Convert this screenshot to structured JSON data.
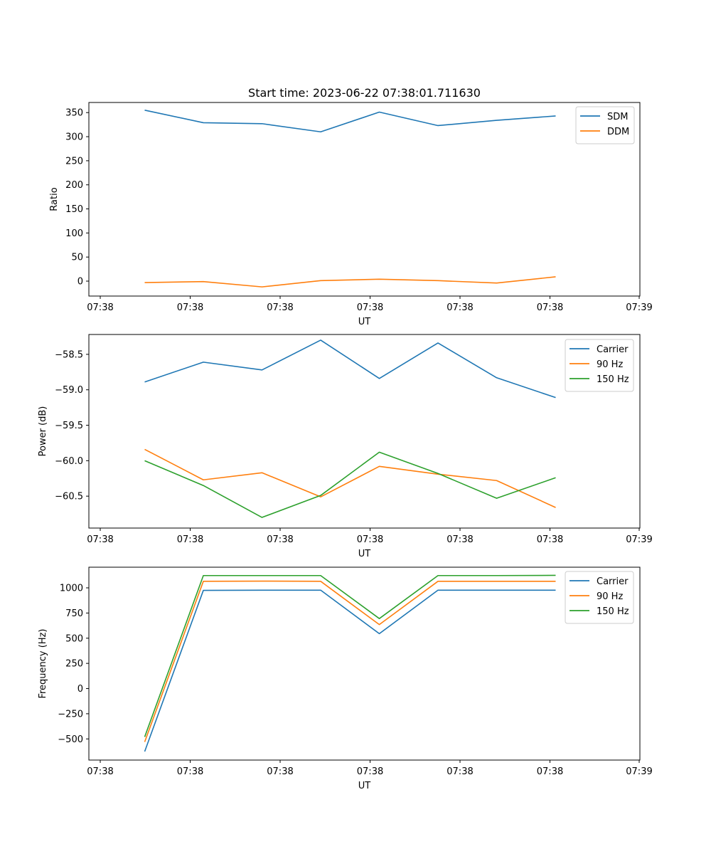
{
  "figure": {
    "title": "Start time: 2023-06-22 07:38:01.711630"
  },
  "chart_data": [
    {
      "type": "line",
      "title": "Start time: 2023-06-22 07:38:01.711630",
      "xlabel": "UT",
      "ylabel": "Ratio",
      "x_tick_labels": [
        "07:38",
        "07:38",
        "07:38",
        "07:38",
        "07:38",
        "07:38",
        "07:38"
      ],
      "x_last_tick_label": "07:39",
      "y_ticks": [
        0,
        50,
        100,
        150,
        200,
        250,
        300,
        350
      ],
      "y_tick_labels": [
        "0",
        "50",
        "100",
        "150",
        "200",
        "250",
        "300",
        "350"
      ],
      "ylim": [
        -31,
        371
      ],
      "grid": false,
      "legend": "top-right",
      "series": [
        {
          "name": "SDM",
          "color": "#1f77b4",
          "values": [
            355,
            329,
            327,
            310,
            351,
            323,
            334,
            343
          ]
        },
        {
          "name": "DDM",
          "color": "#ff7f0e",
          "values": [
            -3,
            -1,
            -12,
            1,
            4,
            1,
            -4,
            9
          ]
        }
      ]
    },
    {
      "type": "line",
      "xlabel": "UT",
      "ylabel": "Power (dB)",
      "x_tick_labels": [
        "07:38",
        "07:38",
        "07:38",
        "07:38",
        "07:38",
        "07:38",
        "07:38"
      ],
      "x_last_tick_label": "07:39",
      "y_ticks": [
        -58.5,
        -59.0,
        -59.5,
        -60.0,
        -60.5
      ],
      "y_tick_labels": [
        "−58.5",
        "−59.0",
        "−59.5",
        "−60.0",
        "−60.5"
      ],
      "ylim": [
        -60.95,
        -58.22
      ],
      "grid": false,
      "legend": "top-right",
      "series": [
        {
          "name": "Carrier",
          "color": "#1f77b4",
          "values": [
            -58.89,
            -58.61,
            -58.72,
            -58.3,
            -58.84,
            -58.34,
            -58.83,
            -59.11
          ]
        },
        {
          "name": "90 Hz",
          "color": "#ff7f0e",
          "values": [
            -59.84,
            -60.27,
            -60.17,
            -60.51,
            -60.08,
            -60.19,
            -60.28,
            -60.66
          ]
        },
        {
          "name": "150 Hz",
          "color": "#2ca02c",
          "values": [
            -60.0,
            -60.35,
            -60.8,
            -60.49,
            -59.88,
            -60.18,
            -60.53,
            -60.24
          ]
        }
      ]
    },
    {
      "type": "line",
      "xlabel": "UT",
      "ylabel": "Frequency (Hz)",
      "x_tick_labels": [
        "07:38",
        "07:38",
        "07:38",
        "07:38",
        "07:38",
        "07:38",
        "07:38"
      ],
      "x_last_tick_label": "07:39",
      "y_ticks": [
        1000,
        750,
        500,
        250,
        0,
        -250,
        -500
      ],
      "y_tick_labels": [
        "1000",
        "750",
        "500",
        "250",
        "0",
        "−250",
        "−500"
      ],
      "ylim": [
        -710,
        1205
      ],
      "grid": false,
      "legend": "top-right",
      "series": [
        {
          "name": "Carrier",
          "color": "#1f77b4",
          "values": [
            -625,
            975,
            977,
            977,
            545,
            977,
            977,
            977
          ]
        },
        {
          "name": "90 Hz",
          "color": "#ff7f0e",
          "values": [
            -530,
            1065,
            1067,
            1065,
            635,
            1065,
            1065,
            1065
          ]
        },
        {
          "name": "150 Hz",
          "color": "#2ca02c",
          "values": [
            -480,
            1122,
            1122,
            1122,
            695,
            1122,
            1122,
            1124
          ]
        }
      ]
    }
  ]
}
